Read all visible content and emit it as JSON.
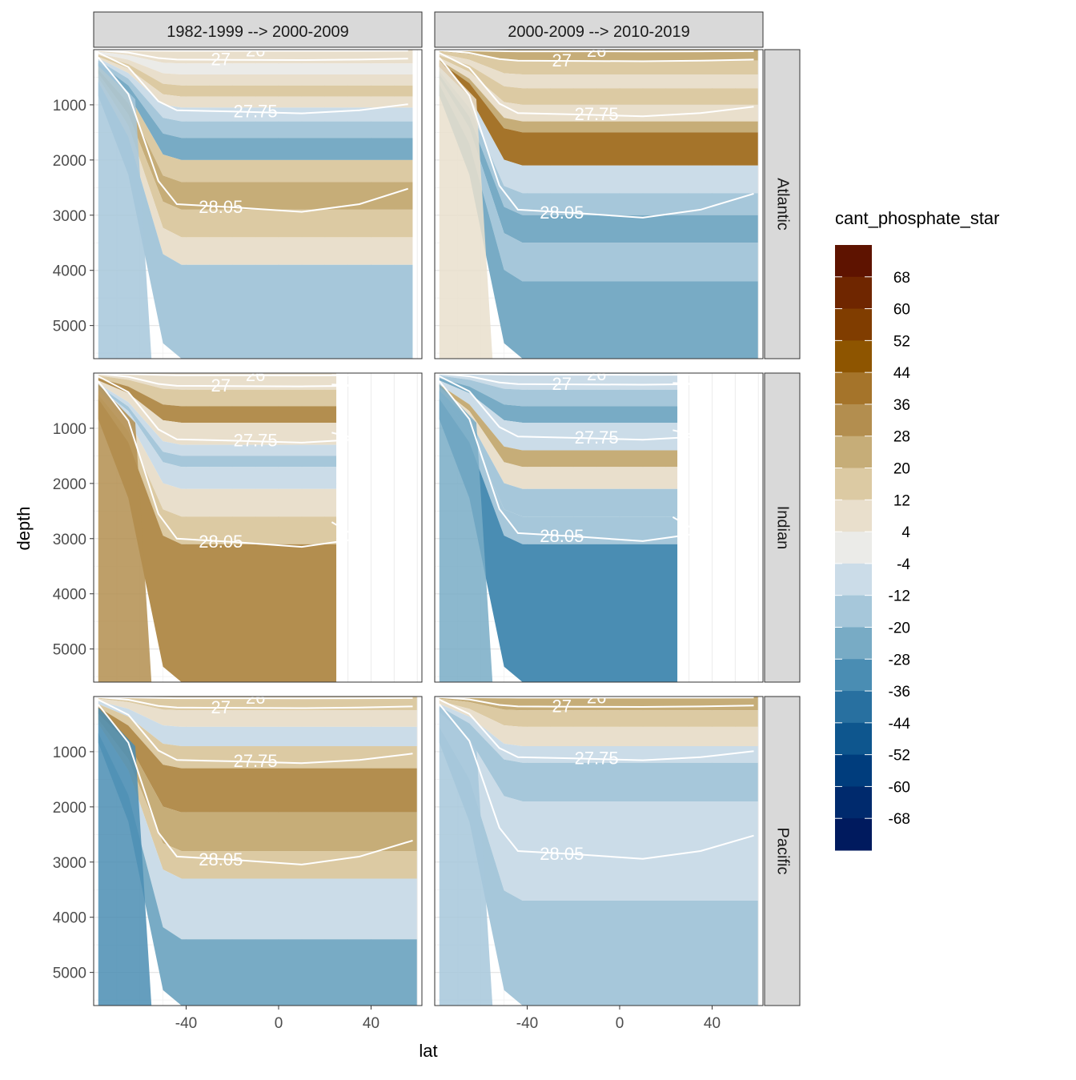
{
  "chart_data": {
    "type": "heatmap",
    "variable": "cant_phosphate_star",
    "xlabel": "lat",
    "ylabel": "depth",
    "xlim": [
      -80,
      62
    ],
    "ylim": [
      0,
      5600
    ],
    "x_ticks": [
      -40,
      0,
      40
    ],
    "y_ticks": [
      1000,
      2000,
      3000,
      4000,
      5000
    ],
    "columns": [
      {
        "label": "1982-1999 --> 2000-2009"
      },
      {
        "label": "2000-2009 --> 2010-2019"
      }
    ],
    "rows": [
      {
        "label": "Atlantic"
      },
      {
        "label": "Indian"
      },
      {
        "label": "Pacific"
      }
    ],
    "legend": {
      "title": "cant_phosphate_star",
      "breaks": [
        "68",
        "60",
        "52",
        "44",
        "36",
        "28",
        "20",
        "12",
        "4",
        "-4",
        "-12",
        "-20",
        "-28",
        "-36",
        "-44",
        "-52",
        "-60",
        "-68"
      ],
      "colors": [
        "#5e1300",
        "#6f2600",
        "#803d00",
        "#8e5500",
        "#a5742a",
        "#b38e4f",
        "#c6ad78",
        "#dccaa3",
        "#e9dfcc",
        "#ebebe8",
        "#cbdce8",
        "#a6c7da",
        "#78abc5",
        "#4a8db3",
        "#2870a0",
        "#0e568e",
        "#003d7d",
        "#002a6d",
        "#001a5e"
      ]
    },
    "contours": [
      {
        "label": "26",
        "depths": [
          20,
          30,
          40,
          30,
          30
        ]
      },
      {
        "label": "27",
        "depths": [
          180,
          200,
          230,
          200,
          200
        ]
      },
      {
        "label": "27.75",
        "depths": [
          1100,
          1150,
          1200,
          1150,
          1150
        ]
      },
      {
        "label": "28.05",
        "depths": [
          2800,
          2900,
          3000,
          2900,
          2900
        ]
      }
    ],
    "panels": [
      {
        "row": 0,
        "col": 0,
        "bands": [
          {
            "top": 0,
            "bottom": 250,
            "value": 12
          },
          {
            "top": 250,
            "bottom": 450,
            "value": 4
          },
          {
            "top": 450,
            "bottom": 650,
            "value": 12
          },
          {
            "top": 650,
            "bottom": 850,
            "value": 20
          },
          {
            "top": 850,
            "bottom": 1050,
            "value": 12
          },
          {
            "top": 1050,
            "bottom": 1300,
            "value": 0
          },
          {
            "top": 1300,
            "bottom": 1600,
            "value": -12
          },
          {
            "top": 1600,
            "bottom": 2000,
            "value": -20
          },
          {
            "top": 2000,
            "bottom": 2400,
            "value": 20
          },
          {
            "top": 2400,
            "bottom": 2900,
            "value": 28
          },
          {
            "top": 2900,
            "bottom": 3400,
            "value": 20
          },
          {
            "top": 3400,
            "bottom": 3900,
            "value": 12
          },
          {
            "top": 3900,
            "bottom": 5600,
            "value": -8
          }
        ],
        "south_value": -8,
        "north_edge": 58,
        "max_depth": 5500
      },
      {
        "row": 0,
        "col": 1,
        "bands": [
          {
            "top": 0,
            "bottom": 200,
            "value": 28
          },
          {
            "top": 200,
            "bottom": 450,
            "value": 20
          },
          {
            "top": 450,
            "bottom": 700,
            "value": 12
          },
          {
            "top": 700,
            "bottom": 1000,
            "value": 20
          },
          {
            "top": 1000,
            "bottom": 1300,
            "value": 12
          },
          {
            "top": 1300,
            "bottom": 1500,
            "value": 28
          },
          {
            "top": 1500,
            "bottom": 2100,
            "value": 44
          },
          {
            "top": 2100,
            "bottom": 2600,
            "value": 0
          },
          {
            "top": 2600,
            "bottom": 3000,
            "value": -12
          },
          {
            "top": 3000,
            "bottom": 3500,
            "value": -20
          },
          {
            "top": 3500,
            "bottom": 4200,
            "value": -12
          },
          {
            "top": 4200,
            "bottom": 5600,
            "value": -20
          }
        ],
        "south_value": 12,
        "north_edge": 60,
        "max_depth": 5600
      },
      {
        "row": 1,
        "col": 0,
        "bands": [
          {
            "top": 0,
            "bottom": 300,
            "value": 12
          },
          {
            "top": 300,
            "bottom": 600,
            "value": 20
          },
          {
            "top": 600,
            "bottom": 900,
            "value": 36
          },
          {
            "top": 900,
            "bottom": 1300,
            "value": 12
          },
          {
            "top": 1300,
            "bottom": 1500,
            "value": 0
          },
          {
            "top": 1500,
            "bottom": 1700,
            "value": -8
          },
          {
            "top": 1700,
            "bottom": 2100,
            "value": 0
          },
          {
            "top": 2100,
            "bottom": 2600,
            "value": 12
          },
          {
            "top": 2600,
            "bottom": 3100,
            "value": 20
          },
          {
            "top": 3100,
            "bottom": 5600,
            "value": 36
          }
        ],
        "south_value": 36,
        "north_edge": 25,
        "max_depth": 5600
      },
      {
        "row": 1,
        "col": 1,
        "bands": [
          {
            "top": 0,
            "bottom": 300,
            "value": 0
          },
          {
            "top": 300,
            "bottom": 600,
            "value": -12
          },
          {
            "top": 600,
            "bottom": 900,
            "value": -20
          },
          {
            "top": 900,
            "bottom": 1400,
            "value": 0
          },
          {
            "top": 1400,
            "bottom": 1700,
            "value": 28
          },
          {
            "top": 1700,
            "bottom": 2100,
            "value": 12
          },
          {
            "top": 2100,
            "bottom": 2600,
            "value": -8
          },
          {
            "top": 2600,
            "bottom": 3100,
            "value": -12
          },
          {
            "top": 3100,
            "bottom": 5600,
            "value": -28
          }
        ],
        "south_value": -20,
        "north_edge": 25,
        "max_depth": 5600
      },
      {
        "row": 2,
        "col": 0,
        "bands": [
          {
            "top": 0,
            "bottom": 250,
            "value": 20
          },
          {
            "top": 250,
            "bottom": 550,
            "value": 12
          },
          {
            "top": 550,
            "bottom": 900,
            "value": 0
          },
          {
            "top": 900,
            "bottom": 1300,
            "value": 20
          },
          {
            "top": 1300,
            "bottom": 2100,
            "value": 36
          },
          {
            "top": 2100,
            "bottom": 2800,
            "value": 28
          },
          {
            "top": 2800,
            "bottom": 3300,
            "value": 20
          },
          {
            "top": 3300,
            "bottom": 4400,
            "value": 0
          },
          {
            "top": 4400,
            "bottom": 5600,
            "value": -20
          }
        ],
        "south_value": -28,
        "north_edge": 60,
        "max_depth": 5600
      },
      {
        "row": 2,
        "col": 1,
        "bands": [
          {
            "top": 0,
            "bottom": 250,
            "value": 28
          },
          {
            "top": 250,
            "bottom": 550,
            "value": 20
          },
          {
            "top": 550,
            "bottom": 900,
            "value": 12
          },
          {
            "top": 900,
            "bottom": 1200,
            "value": 0
          },
          {
            "top": 1200,
            "bottom": 1900,
            "value": -12
          },
          {
            "top": 1900,
            "bottom": 3700,
            "value": 0
          },
          {
            "top": 3700,
            "bottom": 5600,
            "value": -8
          }
        ],
        "south_value": -8,
        "north_edge": 60,
        "max_depth": 5600
      }
    ]
  }
}
